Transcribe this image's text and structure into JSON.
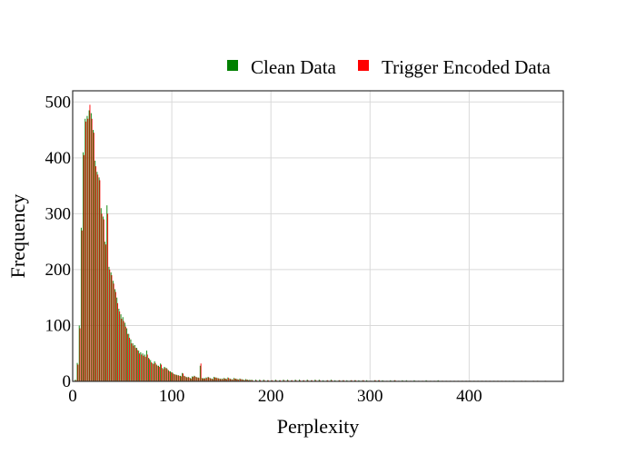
{
  "chart_data": {
    "type": "bar",
    "xlabel": "Perplexity",
    "ylabel": "Frequency",
    "xlim": [
      0,
      495
    ],
    "ylim": [
      0,
      520
    ],
    "x_ticks": [
      0,
      100,
      200,
      300,
      400
    ],
    "y_ticks": [
      0,
      100,
      200,
      300,
      400,
      500
    ],
    "grid": true,
    "legend_position": "top-right",
    "bin_width": 2,
    "series": [
      {
        "name": "Clean Data",
        "color": "#008000",
        "x": [
          3,
          5,
          7,
          9,
          11,
          13,
          15,
          17,
          19,
          21,
          23,
          25,
          27,
          29,
          31,
          33,
          35,
          37,
          39,
          41,
          43,
          45,
          47,
          49,
          51,
          53,
          55,
          57,
          59,
          61,
          63,
          65,
          67,
          69,
          71,
          73,
          75,
          77,
          79,
          81,
          83,
          85,
          87,
          89,
          91,
          93,
          95,
          97,
          99,
          101,
          103,
          105,
          107,
          109,
          111,
          113,
          115,
          117,
          119,
          121,
          123,
          125,
          127,
          129,
          131,
          133,
          135,
          137,
          139,
          141,
          143,
          145,
          147,
          149,
          151,
          153,
          155,
          157,
          159,
          161,
          163,
          165,
          167,
          169,
          171,
          173,
          175,
          177,
          179,
          181,
          185,
          189,
          193,
          197,
          201,
          205,
          209,
          213,
          217,
          221,
          225,
          229,
          233,
          237,
          241,
          245,
          249,
          253,
          257,
          261,
          265,
          269,
          273,
          277,
          281,
          285,
          289,
          293,
          297,
          301,
          305,
          309,
          313,
          317,
          321,
          325,
          329,
          333,
          337,
          341,
          345,
          349,
          353,
          357,
          361,
          365,
          369,
          373,
          377,
          381,
          385,
          389,
          393,
          397,
          401,
          405,
          409,
          413,
          417,
          421,
          425,
          429,
          433,
          437,
          441,
          445,
          449,
          453,
          457,
          461,
          465,
          469,
          473,
          477
        ],
        "values": [
          3,
          33,
          100,
          275,
          410,
          470,
          475,
          485,
          480,
          450,
          395,
          375,
          365,
          310,
          295,
          250,
          315,
          205,
          195,
          180,
          165,
          150,
          130,
          120,
          115,
          105,
          95,
          85,
          75,
          68,
          65,
          60,
          55,
          52,
          50,
          48,
          55,
          42,
          38,
          33,
          36,
          30,
          28,
          32,
          24,
          26,
          24,
          20,
          18,
          16,
          13,
          12,
          11,
          10,
          15,
          10,
          8,
          8,
          6,
          9,
          10,
          8,
          7,
          28,
          6,
          6,
          7,
          8,
          6,
          5,
          8,
          7,
          6,
          5,
          5,
          6,
          5,
          7,
          5,
          4,
          6,
          5,
          4,
          5,
          4,
          3,
          4,
          3,
          3,
          3,
          3,
          3,
          3,
          2,
          2,
          3,
          2,
          3,
          3,
          2,
          3,
          3,
          2,
          3,
          2,
          3,
          3,
          2,
          2,
          3,
          2,
          2,
          2,
          2,
          2,
          2,
          2,
          2,
          2,
          1,
          2,
          2,
          2,
          1,
          2,
          2,
          1,
          2,
          2,
          1,
          2,
          1,
          1,
          2,
          1,
          1,
          2,
          1,
          1,
          1,
          1,
          1,
          1,
          1,
          1,
          1,
          1,
          1,
          1,
          1,
          1,
          1,
          1,
          1,
          1,
          1,
          0,
          1,
          1,
          0,
          1,
          1,
          0,
          1
        ]
      },
      {
        "name": "Trigger Encoded Data",
        "color": "#ff0000",
        "x": [
          3,
          5,
          7,
          9,
          11,
          13,
          15,
          17,
          19,
          21,
          23,
          25,
          27,
          29,
          31,
          33,
          35,
          37,
          39,
          41,
          43,
          45,
          47,
          49,
          51,
          53,
          55,
          57,
          59,
          61,
          63,
          65,
          67,
          69,
          71,
          73,
          75,
          77,
          79,
          81,
          83,
          85,
          87,
          89,
          91,
          93,
          95,
          97,
          99,
          101,
          103,
          105,
          107,
          109,
          111,
          113,
          115,
          117,
          119,
          121,
          123,
          125,
          127,
          129,
          131,
          133,
          135,
          137,
          139,
          141,
          143,
          145,
          147,
          149,
          151,
          153,
          155,
          157,
          159,
          161,
          163,
          165,
          167,
          169,
          171,
          173,
          175,
          177,
          179,
          181,
          185,
          189,
          193,
          197,
          201,
          205,
          209,
          213,
          217,
          221,
          225,
          229,
          233,
          237,
          241,
          245,
          249,
          253,
          257,
          261,
          265,
          269,
          273,
          277,
          281,
          285,
          289,
          293,
          297,
          301,
          305,
          309,
          313,
          317,
          321,
          325,
          329,
          333,
          337,
          341,
          345,
          349,
          353,
          357,
          361,
          365,
          369,
          373,
          377,
          381,
          385,
          389,
          393,
          397,
          401,
          405,
          409,
          413,
          417,
          421,
          425,
          429,
          433,
          437,
          441,
          445,
          449,
          453,
          457,
          461,
          465,
          469,
          473,
          477
        ],
        "values": [
          2,
          30,
          95,
          270,
          405,
          465,
          470,
          495,
          470,
          445,
          385,
          370,
          360,
          300,
          290,
          245,
          300,
          200,
          190,
          175,
          160,
          140,
          125,
          112,
          108,
          98,
          85,
          78,
          68,
          64,
          60,
          56,
          50,
          48,
          46,
          44,
          48,
          40,
          34,
          31,
          33,
          28,
          26,
          30,
          22,
          24,
          22,
          18,
          16,
          14,
          12,
          11,
          10,
          9,
          14,
          9,
          7,
          7,
          5,
          8,
          9,
          7,
          6,
          32,
          5,
          5,
          6,
          7,
          5,
          4,
          7,
          6,
          5,
          4,
          4,
          5,
          4,
          6,
          4,
          3,
          5,
          4,
          3,
          4,
          3,
          2,
          3,
          2,
          2,
          2,
          2,
          2,
          2,
          2,
          2,
          2,
          2,
          2,
          2,
          2,
          2,
          2,
          2,
          2,
          2,
          2,
          2,
          1,
          2,
          2,
          1,
          2,
          2,
          1,
          2,
          2,
          1,
          2,
          1,
          1,
          2,
          2,
          1,
          1,
          1,
          2,
          1,
          1,
          1,
          1,
          1,
          1,
          1,
          1,
          1,
          1,
          1,
          1,
          1,
          1,
          1,
          1,
          1,
          1,
          1,
          1,
          1,
          1,
          1,
          1,
          1,
          1,
          1,
          1,
          0,
          1,
          0,
          1,
          1,
          0,
          1,
          1,
          0,
          1
        ]
      }
    ]
  }
}
